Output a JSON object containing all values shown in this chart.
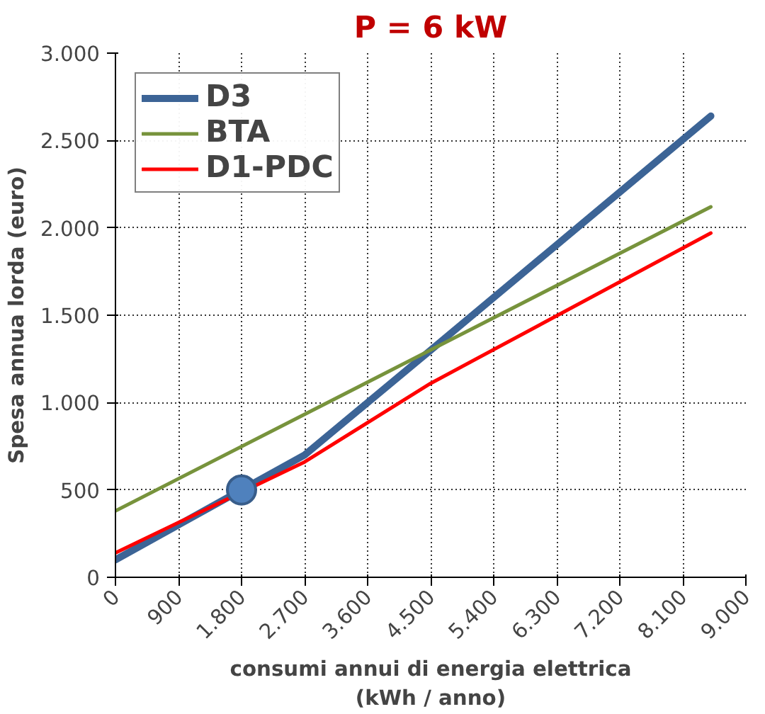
{
  "chart_data": {
    "type": "line",
    "title": "P = 6 kW",
    "xlabel": "consumi annui di energia elettrica\n(kWh / anno)",
    "ylabel": "Spesa annua lorda (euro)",
    "xlim": [
      0,
      9000
    ],
    "ylim": [
      0,
      3000
    ],
    "xticks": [
      0,
      900,
      {
        "value": 1800,
        "label": "1.800"
      },
      {
        "value": 2700,
        "label": "2.700"
      },
      {
        "value": 3600,
        "label": "3.600"
      },
      {
        "value": 4500,
        "label": "4.500"
      },
      {
        "value": 5400,
        "label": "5.400"
      },
      {
        "value": 6300,
        "label": "6.300"
      },
      {
        "value": 7200,
        "label": "7.200"
      },
      {
        "value": 8100,
        "label": "8.100"
      },
      {
        "value": 9000,
        "label": "9.000"
      }
    ],
    "yticks": [
      0,
      500,
      {
        "value": 1000,
        "label": "1.000"
      },
      {
        "value": 1500,
        "label": "1.500"
      },
      {
        "value": 2000,
        "label": "2.000"
      },
      {
        "value": 2500,
        "label": "2.500"
      },
      {
        "value": 3000,
        "label": "3.000"
      }
    ],
    "grid": true,
    "legend": "top left",
    "line_style": "solid",
    "series": [
      {
        "name": "D3",
        "color": "#3c6496",
        "x": [
          0,
          1800,
          2700,
          4500,
          8500
        ],
        "values": [
          100,
          500,
          700,
          1300,
          2640
        ]
      },
      {
        "name": "BTA",
        "color": "#77933c",
        "x": [
          0,
          8500
        ],
        "values": [
          380,
          2120
        ]
      },
      {
        "name": "D1-PDC",
        "color": "#ff0000",
        "x": [
          0,
          2700,
          4500,
          8500
        ],
        "values": [
          140,
          660,
          1110,
          1970
        ]
      },
      {
        "type": "scatter",
        "marker": "circle",
        "color": "#4f81bd",
        "x": [
          1800
        ],
        "values": [
          500
        ]
      }
    ]
  }
}
